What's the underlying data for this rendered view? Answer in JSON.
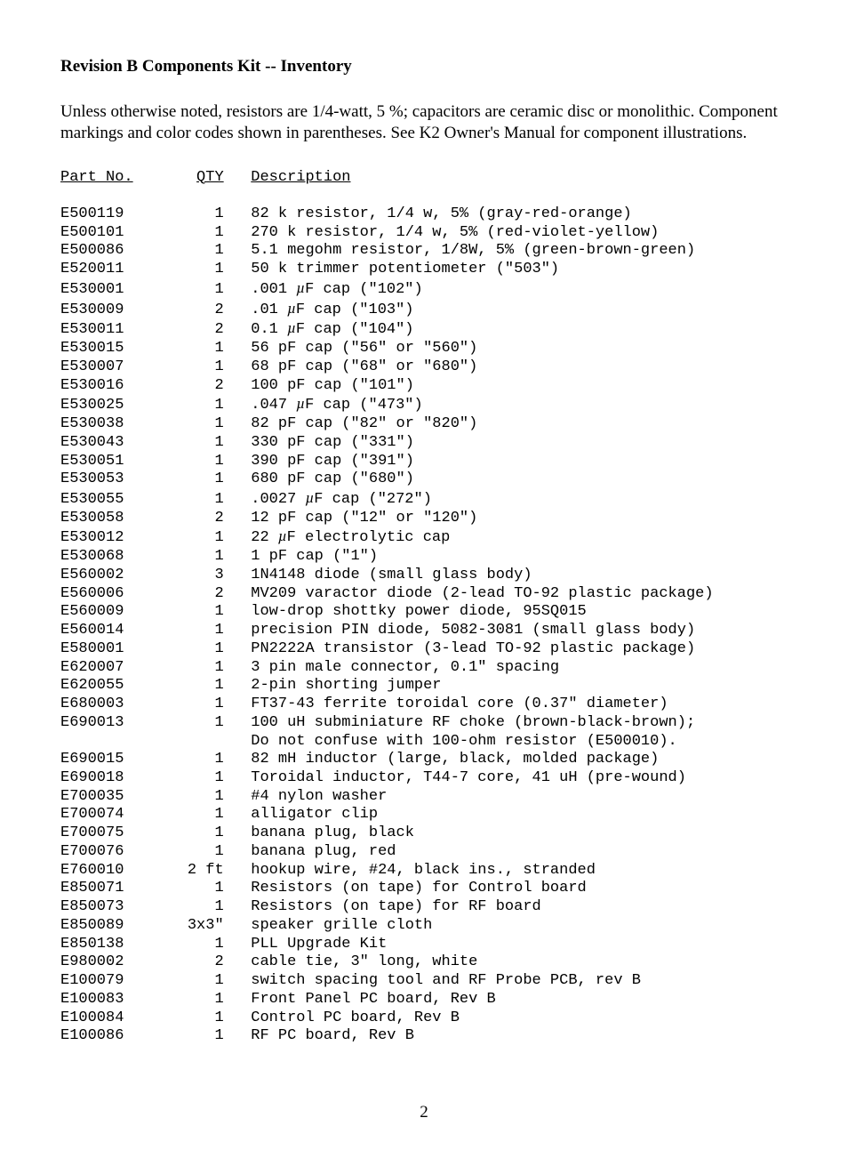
{
  "heading": "Revision B Components Kit -- Inventory",
  "intro": "Unless otherwise noted, resistors are 1/4-watt, 5 %; capacitors are ceramic disc or monolithic. Component markings and color codes shown in parentheses. See K2 Owner's Manual for component illustrations.",
  "columns": {
    "part": "Part No.",
    "qty": "QTY",
    "desc": "Description"
  },
  "page_number": "2",
  "rows": [
    {
      "part": "E500119",
      "qty": "1",
      "desc": "82 k resistor, 1/4 w, 5% (gray-red-orange)"
    },
    {
      "part": "E500101",
      "qty": "1",
      "desc": "270 k resistor, 1/4 w, 5% (red-violet-yellow)"
    },
    {
      "part": "E500086",
      "qty": "1",
      "desc": "5.1 megohm resistor, 1/8W, 5% (green-brown-green)"
    },
    {
      "part": "E520011",
      "qty": "1",
      "desc": "50 k trimmer potentiometer (\"503\")"
    },
    {
      "part": "E530001",
      "qty": "1",
      "desc": ".001 µF cap (\"102\")",
      "mu": true
    },
    {
      "part": "E530009",
      "qty": "2",
      "desc": ".01 µF cap (\"103\")",
      "mu": true
    },
    {
      "part": "E530011",
      "qty": "2",
      "desc": "0.1 µF cap (\"104\")",
      "mu": true
    },
    {
      "part": "E530015",
      "qty": "1",
      "desc": "56 pF cap (\"56\" or \"560\")"
    },
    {
      "part": "E530007",
      "qty": "1",
      "desc": "68 pF cap (\"68\" or \"680\")"
    },
    {
      "part": "E530016",
      "qty": "2",
      "desc": "100 pF cap (\"101\")"
    },
    {
      "part": "E530025",
      "qty": "1",
      "desc": ".047 µF cap (\"473\")",
      "mu": true
    },
    {
      "part": "E530038",
      "qty": "1",
      "desc": "82 pF cap (\"82\" or \"820\")"
    },
    {
      "part": "E530043",
      "qty": "1",
      "desc": "330 pF cap (\"331\")"
    },
    {
      "part": "E530051",
      "qty": "1",
      "desc": "390 pF cap (\"391\")"
    },
    {
      "part": "E530053",
      "qty": "1",
      "desc": "680 pF cap (\"680\")"
    },
    {
      "part": "E530055",
      "qty": "1",
      "desc": ".0027 µF cap (\"272\")",
      "mu": true
    },
    {
      "part": "E530058",
      "qty": "2",
      "desc": "12 pF cap (\"12\" or \"120\")"
    },
    {
      "part": "E530012",
      "qty": "1",
      "desc": "22 µF electrolytic cap",
      "mu": true
    },
    {
      "part": "E530068",
      "qty": "1",
      "desc": "1 pF cap (\"1\")"
    },
    {
      "part": "E560002",
      "qty": "3",
      "desc": "1N4148 diode (small glass body)"
    },
    {
      "part": "E560006",
      "qty": "2",
      "desc": "MV209 varactor diode (2-lead TO-92 plastic package)"
    },
    {
      "part": "E560009",
      "qty": "1",
      "desc": "low-drop shottky power diode, 95SQ015"
    },
    {
      "part": "E560014",
      "qty": "1",
      "desc": "precision PIN diode, 5082-3081 (small glass body)"
    },
    {
      "part": "E580001",
      "qty": "1",
      "desc": "PN2222A transistor (3-lead TO-92 plastic package)"
    },
    {
      "part": "E620007",
      "qty": "1",
      "desc": "3 pin male connector, 0.1\" spacing"
    },
    {
      "part": "E620055",
      "qty": "1",
      "desc": "2-pin shorting jumper"
    },
    {
      "part": "E680003",
      "qty": "1",
      "desc": "FT37-43 ferrite toroidal core (0.37\" diameter)"
    },
    {
      "part": "E690013",
      "qty": "1",
      "desc": "100 uH subminiature RF choke (brown-black-brown);",
      "cont": "Do not confuse with 100-ohm resistor (E500010)."
    },
    {
      "part": "E690015",
      "qty": "1",
      "desc": "82 mH inductor (large, black, molded package)"
    },
    {
      "part": "E690018",
      "qty": "1",
      "desc": "Toroidal inductor, T44-7 core, 41 uH (pre-wound)"
    },
    {
      "part": "E700035",
      "qty": "1",
      "desc": "#4 nylon washer"
    },
    {
      "part": "E700074",
      "qty": "1",
      "desc": "alligator clip"
    },
    {
      "part": "E700075",
      "qty": "1",
      "desc": "banana plug, black"
    },
    {
      "part": "E700076",
      "qty": "1",
      "desc": "banana plug, red"
    },
    {
      "part": "E760010",
      "qty": "2 ft",
      "desc": "hookup wire, #24, black ins., stranded"
    },
    {
      "part": "E850071",
      "qty": "1",
      "desc": "Resistors (on tape) for Control board"
    },
    {
      "part": "E850073",
      "qty": "1",
      "desc": "Resistors (on tape) for RF board"
    },
    {
      "part": "E850089",
      "qty": "3x3\"",
      "desc": "speaker grille cloth"
    },
    {
      "part": "E850138",
      "qty": "1",
      "desc": "PLL Upgrade Kit"
    },
    {
      "part": "E980002",
      "qty": "2",
      "desc": "cable tie, 3\" long, white"
    },
    {
      "part": "E100079",
      "qty": "1",
      "desc": "switch spacing tool and RF Probe PCB, rev B"
    },
    {
      "part": "E100083",
      "qty": "1",
      "desc": "Front Panel PC board, Rev B"
    },
    {
      "part": "E100084",
      "qty": "1",
      "desc": "Control PC board, Rev B"
    },
    {
      "part": "E100086",
      "qty": "1",
      "desc": "RF PC board, Rev B"
    }
  ]
}
